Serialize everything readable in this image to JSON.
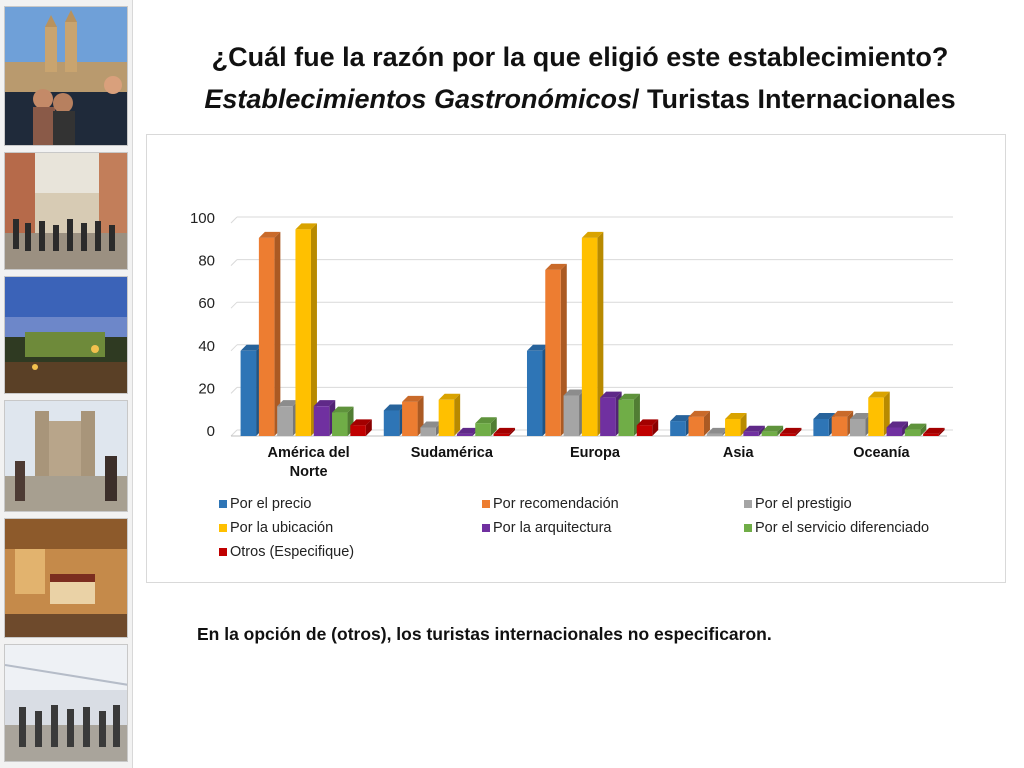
{
  "title": {
    "line1": "¿Cuál fue la razón por la que eligió este establecimiento?",
    "line2_italic": "Establecimientos Gastronómicos",
    "line2_rest": "/ Turistas Internacionales"
  },
  "footnote": "En la opción de (otros), los turistas internacionales no especificaron.",
  "chart_data": {
    "type": "bar",
    "style": "3d-clustered-column",
    "categories": [
      "América del Norte",
      "Sudamérica",
      "Europa",
      "Asia",
      "Oceanía"
    ],
    "category_lines": [
      [
        "América del",
        "Norte"
      ],
      [
        "Sudamérica"
      ],
      [
        "Europa"
      ],
      [
        "Asia"
      ],
      [
        "Oceanía"
      ]
    ],
    "yticks": [
      0,
      20,
      40,
      60,
      80,
      100
    ],
    "ylim": [
      0,
      100
    ],
    "grid": true,
    "legend_position": "bottom",
    "series": [
      {
        "name": "Por el precio",
        "color": "#2e75b6",
        "values": [
          40,
          12,
          40,
          7,
          8
        ]
      },
      {
        "name": "Por recomendación",
        "color": "#ed7d31",
        "values": [
          93,
          16,
          78,
          9,
          9
        ]
      },
      {
        "name": "Por el prestigio",
        "color": "#a5a5a5",
        "values": [
          14,
          4,
          19,
          1,
          8
        ]
      },
      {
        "name": "Por la ubicación",
        "color": "#ffc000",
        "values": [
          97,
          17,
          93,
          8,
          18
        ]
      },
      {
        "name": "Por la arquitectura",
        "color": "#7030a0",
        "values": [
          14,
          1,
          18,
          2,
          4
        ]
      },
      {
        "name": "Por el servicio diferenciado",
        "color": "#70ad47",
        "values": [
          11,
          6,
          17,
          2,
          3
        ]
      },
      {
        "name": "Otros (Especifique)",
        "color": "#c00000",
        "values": [
          5,
          1,
          5,
          1,
          1
        ]
      }
    ]
  }
}
